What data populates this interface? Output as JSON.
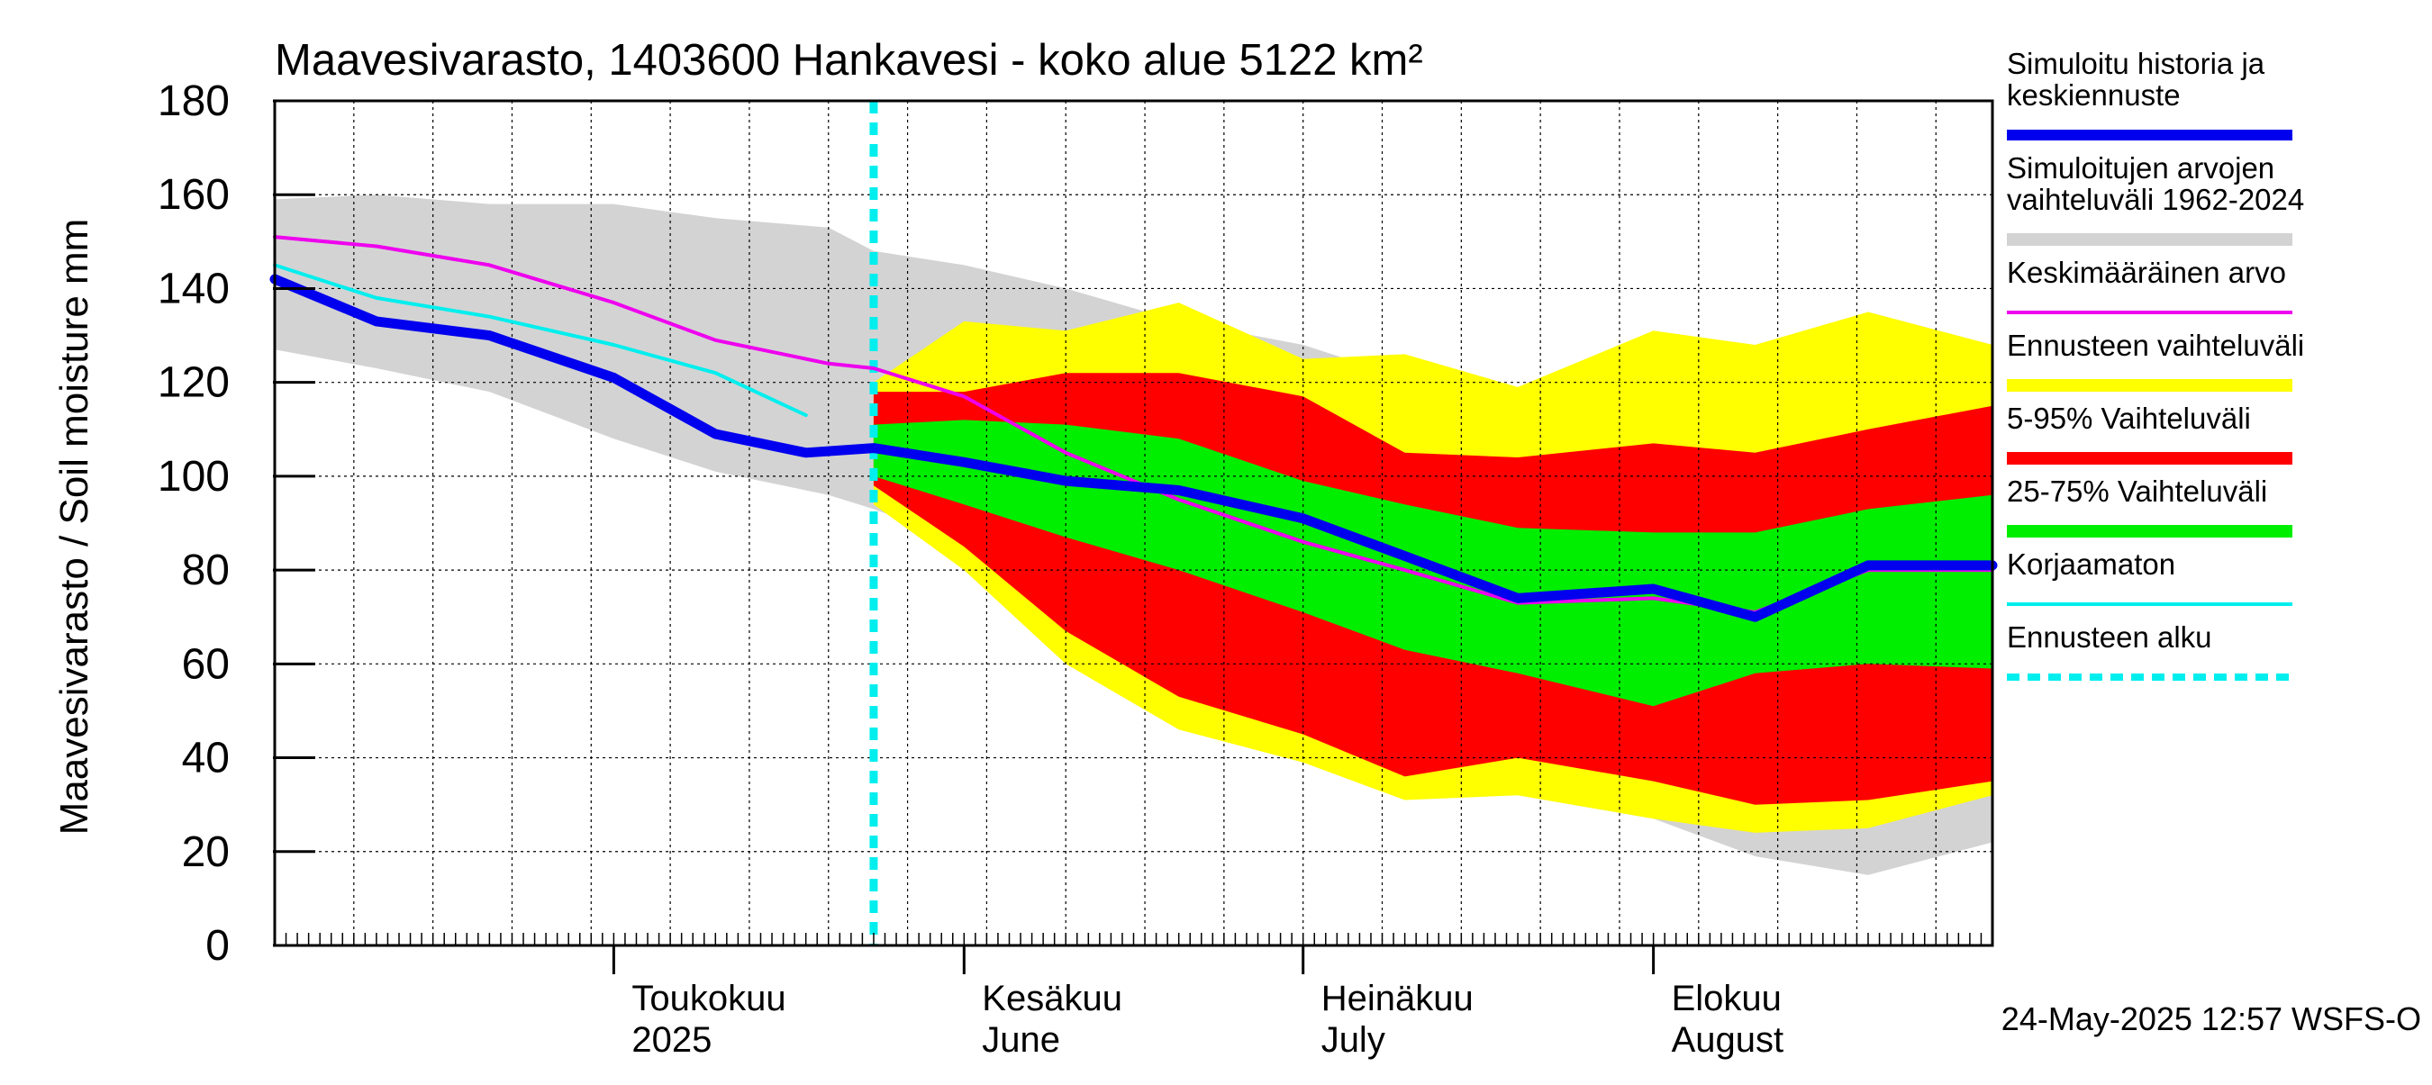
{
  "chart_data": {
    "type": "area",
    "title": "Maavesivarasto, 1403600 Hankavesi - koko alue 5122 km²",
    "ylabel": "Maavesivarasto / Soil moisture   mm",
    "ylim": [
      0,
      180
    ],
    "yticks": [
      0,
      20,
      40,
      60,
      80,
      100,
      120,
      140,
      160,
      180
    ],
    "xlim": [
      "2025-04-01",
      "2025-08-31"
    ],
    "grid": true,
    "month_labels": [
      {
        "date": "2025-05-01",
        "line1": "Toukokuu",
        "line2": "2025"
      },
      {
        "date": "2025-06-01",
        "line1": "Kesäkuu",
        "line2": "June"
      },
      {
        "date": "2025-07-01",
        "line1": "Heinäkuu",
        "line2": "July"
      },
      {
        "date": "2025-08-01",
        "line1": "Elokuu",
        "line2": "August"
      }
    ],
    "forecast_start": "2025-05-24",
    "footer": "24-May-2025 12:57 WSFS-O",
    "colors": {
      "sim_range": "#d3d3d3",
      "forecast_range": "#ffff00",
      "p5_95": "#ff0000",
      "p25_75": "#00ee00",
      "history": "#0000ee",
      "mean": "#ee00ee",
      "uncorrected": "#00eeee",
      "forecast_start": "#00eeee"
    },
    "legend": {
      "position": "right",
      "entries": [
        {
          "label_lines": [
            "Simuloitu historia ja",
            "keskiennuste"
          ],
          "style": "thick",
          "color": "#0000ee"
        },
        {
          "label_lines": [
            "Simuloitujen arvojen",
            "vaihteluväli 1962-2024"
          ],
          "style": "band",
          "color": "#d3d3d3"
        },
        {
          "label_lines": [
            "Keskimääräinen arvo"
          ],
          "style": "thin",
          "color": "#ee00ee"
        },
        {
          "label_lines": [
            "Ennusteen vaihteluväli"
          ],
          "style": "band",
          "color": "#ffff00"
        },
        {
          "label_lines": [
            "5-95% Vaihteluväli"
          ],
          "style": "band",
          "color": "#ff0000"
        },
        {
          "label_lines": [
            "25-75% Vaihteluväli"
          ],
          "style": "band",
          "color": "#00ee00"
        },
        {
          "label_lines": [
            "Korjaamaton"
          ],
          "style": "thin",
          "color": "#00eeee"
        },
        {
          "label_lines": [
            "Ennusteen alku"
          ],
          "style": "dashed",
          "color": "#00eeee"
        }
      ]
    },
    "series": [
      {
        "name": "Simuloitujen arvojen vaihteluväli 1962-2024",
        "kind": "band",
        "x": [
          "2025-04-01",
          "2025-04-10",
          "2025-04-20",
          "2025-05-01",
          "2025-05-10",
          "2025-05-20",
          "2025-05-24",
          "2025-06-01",
          "2025-06-10",
          "2025-06-20",
          "2025-07-01",
          "2025-07-10",
          "2025-07-20",
          "2025-08-01",
          "2025-08-10",
          "2025-08-20",
          "2025-08-31"
        ],
        "upper": [
          159,
          160,
          158,
          158,
          155,
          153,
          148,
          145,
          140,
          133,
          128,
          121,
          116,
          121,
          126,
          135,
          128
        ],
        "lower": [
          127,
          123,
          118,
          108,
          101,
          96,
          93,
          86,
          70,
          58,
          48,
          40,
          32,
          27,
          19,
          15,
          22
        ]
      },
      {
        "name": "Ennusteen vaihteluväli",
        "kind": "band",
        "x": [
          "2025-05-24",
          "2025-06-01",
          "2025-06-10",
          "2025-06-20",
          "2025-07-01",
          "2025-07-10",
          "2025-07-20",
          "2025-08-01",
          "2025-08-10",
          "2025-08-20",
          "2025-08-31"
        ],
        "upper": [
          120,
          133,
          131,
          137,
          125,
          126,
          119,
          131,
          128,
          135,
          128
        ],
        "lower": [
          94,
          80,
          60,
          46,
          39,
          31,
          32,
          27,
          24,
          25,
          32
        ]
      },
      {
        "name": "5-95% Vaihteluväli",
        "kind": "band",
        "x": [
          "2025-05-24",
          "2025-06-01",
          "2025-06-10",
          "2025-06-20",
          "2025-07-01",
          "2025-07-10",
          "2025-07-20",
          "2025-08-01",
          "2025-08-10",
          "2025-08-20",
          "2025-08-31"
        ],
        "upper": [
          118,
          118,
          122,
          122,
          117,
          105,
          104,
          107,
          105,
          110,
          115
        ],
        "lower": [
          98,
          85,
          67,
          53,
          45,
          36,
          40,
          35,
          30,
          31,
          35
        ]
      },
      {
        "name": "25-75% Vaihteluväli",
        "kind": "band",
        "x": [
          "2025-05-24",
          "2025-06-01",
          "2025-06-10",
          "2025-06-20",
          "2025-07-01",
          "2025-07-10",
          "2025-07-20",
          "2025-08-01",
          "2025-08-10",
          "2025-08-20",
          "2025-08-31"
        ],
        "upper": [
          111,
          112,
          111,
          108,
          99,
          94,
          89,
          88,
          88,
          93,
          96
        ],
        "lower": [
          100,
          94,
          87,
          80,
          71,
          63,
          58,
          51,
          58,
          60,
          59
        ]
      },
      {
        "name": "Keskimääräinen arvo",
        "kind": "line",
        "x": [
          "2025-04-01",
          "2025-04-10",
          "2025-04-20",
          "2025-05-01",
          "2025-05-10",
          "2025-05-20",
          "2025-05-24",
          "2025-06-01",
          "2025-06-10",
          "2025-06-20",
          "2025-07-01",
          "2025-07-10",
          "2025-07-20",
          "2025-08-01",
          "2025-08-10",
          "2025-08-20",
          "2025-08-31"
        ],
        "y": [
          151,
          149,
          145,
          137,
          129,
          124,
          123,
          117,
          105,
          95,
          86,
          80,
          73,
          74,
          71,
          80,
          80
        ]
      },
      {
        "name": "Korjaamaton",
        "kind": "line",
        "x": [
          "2025-04-01",
          "2025-04-10",
          "2025-04-20",
          "2025-05-01",
          "2025-05-10",
          "2025-05-18"
        ],
        "y": [
          145,
          138,
          134,
          128,
          122,
          113
        ]
      },
      {
        "name": "Simuloitu historia ja keskiennuste",
        "kind": "line",
        "x": [
          "2025-04-01",
          "2025-04-10",
          "2025-04-20",
          "2025-05-01",
          "2025-05-10",
          "2025-05-18",
          "2025-05-24",
          "2025-06-01",
          "2025-06-10",
          "2025-06-20",
          "2025-07-01",
          "2025-07-10",
          "2025-07-20",
          "2025-08-01",
          "2025-08-10",
          "2025-08-20",
          "2025-08-31"
        ],
        "y": [
          142,
          133,
          130,
          121,
          109,
          105,
          106,
          103,
          99,
          97,
          91,
          83,
          74,
          76,
          70,
          81,
          81
        ]
      }
    ]
  }
}
